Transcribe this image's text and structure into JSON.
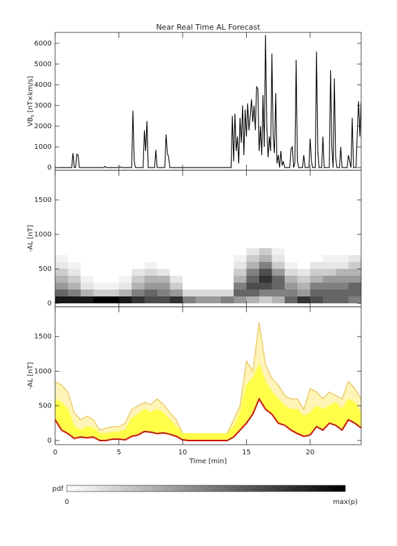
{
  "chart_data": [
    {
      "type": "line",
      "title": "Near Real Time AL Forecast",
      "ylabel": [
        "VB",
        "s",
        " [nT×km/s]"
      ],
      "color": "#000000",
      "xlim": [
        0,
        24
      ],
      "xticks": [
        0,
        5,
        10,
        15,
        20
      ],
      "ylim": [
        -130,
        6530
      ],
      "yticks": [
        0,
        1000,
        2000,
        3000,
        4000,
        5000,
        6000
      ],
      "x": [
        0,
        1.3,
        1.4,
        1.5,
        1.6,
        1.7,
        1.8,
        1.9,
        2.0,
        3.8,
        3.9,
        4.0,
        5.0,
        5.1,
        5.2,
        6.0,
        6.1,
        6.2,
        6.3,
        6.9,
        7.0,
        7.1,
        7.2,
        7.3,
        7.8,
        7.9,
        8.0,
        8.6,
        8.7,
        8.8,
        8.9,
        9.0,
        9.1,
        13.8,
        13.9,
        14.0,
        14.1,
        14.2,
        14.3,
        14.4,
        14.5,
        14.6,
        14.7,
        14.8,
        14.9,
        15.0,
        15.1,
        15.2,
        15.3,
        15.4,
        15.5,
        15.6,
        15.7,
        15.8,
        15.9,
        16.0,
        16.1,
        16.2,
        16.3,
        16.4,
        16.5,
        16.6,
        16.7,
        16.8,
        16.9,
        17.0,
        17.1,
        17.2,
        17.3,
        17.4,
        17.5,
        17.6,
        17.7,
        17.8,
        17.9,
        18.0,
        18.4,
        18.5,
        18.6,
        18.7,
        18.8,
        18.9,
        19.0,
        19.1,
        19.2,
        19.4,
        19.5,
        19.6,
        19.7,
        19.9,
        20.0,
        20.1,
        20.2,
        20.4,
        20.5,
        20.6,
        20.7,
        20.9,
        21.0,
        21.1,
        21.3,
        21.5,
        21.6,
        21.7,
        21.8,
        21.9,
        22.0,
        22.1,
        22.3,
        22.4,
        22.5,
        22.6,
        22.9,
        23.0,
        23.2,
        23.3,
        23.4,
        23.6,
        23.7,
        23.8,
        23.9,
        24.0
      ],
      "values": [
        0,
        0,
        700,
        0,
        0,
        650,
        600,
        0,
        0,
        0,
        60,
        0,
        0,
        40,
        0,
        0,
        2750,
        300,
        0,
        0,
        1800,
        800,
        2250,
        0,
        0,
        850,
        0,
        0,
        1600,
        700,
        500,
        0,
        0,
        0,
        2500,
        300,
        2600,
        800,
        1500,
        200,
        2400,
        1200,
        3000,
        600,
        2800,
        1500,
        3100,
        1800,
        2500,
        3300,
        2200,
        3000,
        1800,
        3900,
        3800,
        800,
        2000,
        600,
        3500,
        1000,
        6400,
        2000,
        500,
        1500,
        800,
        5500,
        1500,
        700,
        3600,
        200,
        600,
        0,
        800,
        100,
        300,
        0,
        0,
        900,
        1000,
        0,
        200,
        5200,
        300,
        0,
        0,
        0,
        600,
        0,
        0,
        0,
        1400,
        300,
        0,
        0,
        5600,
        800,
        0,
        0,
        1500,
        0,
        0,
        0,
        4700,
        1000,
        0,
        4300,
        500,
        0,
        0,
        1000,
        0,
        0,
        0,
        600,
        0,
        2400,
        0,
        0,
        1800,
        3200,
        1500,
        3200
      ]
    },
    {
      "type": "heatmap",
      "ylabel": "-AL [nT]",
      "xlim": [
        0,
        24
      ],
      "xticks": [
        0,
        5,
        10,
        15,
        20
      ],
      "ylim": [
        -50,
        1930
      ],
      "yticks": [
        0,
        500,
        1000,
        1500
      ],
      "x_bins": [
        0,
        1,
        2,
        3,
        4,
        5,
        6,
        7,
        8,
        9,
        10,
        11,
        12,
        13,
        14,
        15,
        16,
        17,
        18,
        19,
        20,
        21,
        22,
        23,
        24
      ],
      "y_bins": [
        0,
        100,
        200,
        300,
        400,
        500,
        600,
        700,
        800
      ],
      "z": [
        [
          0.9,
          0.6,
          0.4,
          0.3,
          0.2,
          0.1,
          0.05,
          0
        ],
        [
          0.9,
          0.5,
          0.3,
          0.2,
          0.1,
          0.05,
          0,
          0
        ],
        [
          0.9,
          0.3,
          0.1,
          0.05,
          0,
          0,
          0,
          0
        ],
        [
          1,
          0.2,
          0.05,
          0,
          0,
          0,
          0,
          0
        ],
        [
          1,
          0.2,
          0.05,
          0,
          0,
          0,
          0,
          0
        ],
        [
          0.9,
          0.3,
          0.1,
          0.05,
          0,
          0,
          0,
          0
        ],
        [
          0.8,
          0.5,
          0.3,
          0.2,
          0.1,
          0,
          0,
          0
        ],
        [
          0.7,
          0.6,
          0.4,
          0.3,
          0.15,
          0.05,
          0,
          0
        ],
        [
          0.7,
          0.5,
          0.4,
          0.3,
          0.1,
          0,
          0,
          0
        ],
        [
          0.8,
          0.4,
          0.2,
          0.1,
          0,
          0,
          0,
          0
        ],
        [
          0.5,
          0.15,
          0,
          0,
          0,
          0,
          0,
          0
        ],
        [
          0.4,
          0.15,
          0,
          0,
          0,
          0,
          0,
          0
        ],
        [
          0.4,
          0.15,
          0,
          0,
          0,
          0,
          0,
          0
        ],
        [
          0.5,
          0.15,
          0,
          0,
          0,
          0,
          0,
          0
        ],
        [
          0.4,
          0.6,
          0.5,
          0.3,
          0.2,
          0.1,
          0.05,
          0
        ],
        [
          0.3,
          0.6,
          0.7,
          0.6,
          0.5,
          0.3,
          0.2,
          0.1
        ],
        [
          0.2,
          0.5,
          0.7,
          0.8,
          0.7,
          0.5,
          0.3,
          0.2
        ],
        [
          0.3,
          0.5,
          0.6,
          0.6,
          0.4,
          0.2,
          0.1,
          0.05
        ],
        [
          0.6,
          0.5,
          0.4,
          0.3,
          0.15,
          0.05,
          0,
          0
        ],
        [
          0.8,
          0.4,
          0.3,
          0.2,
          0.1,
          0,
          0,
          0
        ],
        [
          0.7,
          0.6,
          0.5,
          0.3,
          0.2,
          0.1,
          0,
          0
        ],
        [
          0.6,
          0.6,
          0.5,
          0.4,
          0.2,
          0.1,
          0.05,
          0
        ],
        [
          0.6,
          0.6,
          0.5,
          0.4,
          0.3,
          0.1,
          0.05,
          0
        ],
        [
          0.5,
          0.6,
          0.6,
          0.4,
          0.3,
          0.2,
          0.1,
          0
        ]
      ],
      "colorbar_label": "pdf",
      "colorbar_ticks": [
        "0",
        "max(p)"
      ]
    },
    {
      "type": "band",
      "ylabel": "-AL [nT]",
      "xlabel": "Time [min]",
      "xlim": [
        0,
        24
      ],
      "xticks": [
        0,
        5,
        10,
        15,
        20
      ],
      "ylim": [
        -60,
        1930
      ],
      "yticks": [
        0,
        500,
        1000,
        1500
      ],
      "x": [
        0,
        0.5,
        1,
        1.5,
        2,
        2.5,
        3,
        3.5,
        4,
        4.5,
        5,
        5.5,
        6,
        6.5,
        7,
        7.5,
        8,
        8.5,
        9,
        9.5,
        10,
        10.5,
        11,
        11.5,
        12,
        12.5,
        13,
        13.5,
        14,
        14.5,
        15,
        15.5,
        16,
        16.5,
        17,
        17.5,
        18,
        18.5,
        19,
        19.5,
        20,
        20.5,
        21,
        21.5,
        22,
        22.5,
        23,
        23.5,
        24
      ],
      "series": [
        {
          "color": "#ffa500",
          "values": [
            850,
            800,
            700,
            400,
            300,
            350,
            300,
            150,
            180,
            200,
            200,
            250,
            450,
            500,
            550,
            520,
            600,
            520,
            400,
            300,
            100,
            100,
            100,
            100,
            100,
            100,
            100,
            100,
            300,
            500,
            1150,
            1000,
            1700,
            1100,
            900,
            800,
            650,
            600,
            600,
            450,
            750,
            700,
            600,
            700,
            650,
            600,
            850,
            750,
            600
          ]
        },
        {
          "color": "#ffff33",
          "values": [
            600,
            550,
            450,
            200,
            150,
            200,
            180,
            100,
            100,
            120,
            130,
            150,
            320,
            380,
            450,
            400,
            450,
            400,
            300,
            200,
            100,
            100,
            100,
            100,
            100,
            100,
            100,
            100,
            200,
            400,
            800,
            900,
            1100,
            850,
            700,
            600,
            500,
            450,
            450,
            350,
            400,
            500,
            450,
            500,
            550,
            450,
            600,
            550,
            400
          ]
        },
        {
          "color": "#ee0000",
          "values": [
            300,
            150,
            100,
            30,
            50,
            40,
            50,
            0,
            0,
            20,
            20,
            10,
            60,
            80,
            130,
            120,
            100,
            110,
            90,
            60,
            10,
            0,
            0,
            0,
            0,
            0,
            0,
            0,
            50,
            150,
            250,
            380,
            600,
            450,
            380,
            250,
            220,
            150,
            100,
            60,
            80,
            200,
            150,
            250,
            220,
            150,
            300,
            250,
            180
          ]
        }
      ]
    }
  ]
}
